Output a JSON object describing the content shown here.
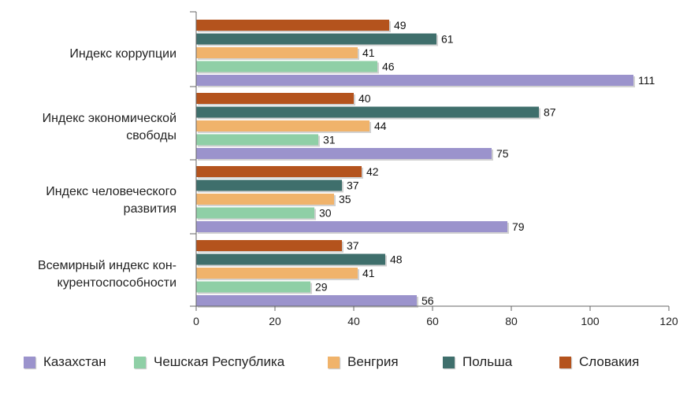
{
  "chart_data": {
    "type": "bar",
    "orientation": "horizontal",
    "categories": [
      [
        "Индекс коррупции"
      ],
      [
        "Индекс экономической",
        "свободы"
      ],
      [
        "Индекс человеческого",
        "развития"
      ],
      [
        "Всемирный индекс кон-",
        "курентоспособности"
      ]
    ],
    "series": [
      {
        "name": "Казахстан",
        "color": "#9b93cc",
        "values": [
          111,
          75,
          79,
          56
        ]
      },
      {
        "name": "Чешская Республика",
        "color": "#8fcfa6",
        "values": [
          46,
          31,
          30,
          29
        ]
      },
      {
        "name": "Венгрия",
        "color": "#f0b36b",
        "values": [
          41,
          44,
          35,
          41
        ]
      },
      {
        "name": "Польша",
        "color": "#3f6f6c",
        "values": [
          61,
          87,
          37,
          48
        ]
      },
      {
        "name": "Словакия",
        "color": "#b4531d",
        "values": [
          49,
          40,
          42,
          37
        ]
      }
    ],
    "xlim": [
      0,
      120
    ],
    "xticks": [
      0,
      20,
      40,
      60,
      80,
      100,
      120
    ],
    "grid": false,
    "legend_position": "bottom"
  }
}
